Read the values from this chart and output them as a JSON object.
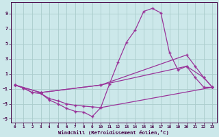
{
  "background_color": "#cce8ea",
  "grid_color": "#aacccc",
  "line_color": "#993399",
  "xlim": [
    -0.5,
    23.5
  ],
  "ylim": [
    -5.5,
    10.5
  ],
  "yticks": [
    -5,
    -3,
    -1,
    1,
    3,
    5,
    7,
    9
  ],
  "xticks": [
    0,
    1,
    2,
    3,
    4,
    5,
    6,
    7,
    8,
    9,
    10,
    11,
    12,
    13,
    14,
    15,
    16,
    17,
    18,
    19,
    20,
    21,
    22,
    23
  ],
  "xlabel": "Windchill (Refroidissement éolien,°C)",
  "lines": [
    {
      "x": [
        0,
        1,
        2,
        3,
        4,
        5,
        6,
        7,
        8,
        9,
        10,
        11,
        12,
        13,
        14,
        15,
        16,
        17,
        18,
        19,
        20,
        21,
        22,
        23
      ],
      "y": [
        -0.5,
        -0.9,
        -1.5,
        -1.6,
        -2.5,
        -3.0,
        -3.6,
        -4.0,
        -4.1,
        -4.7,
        -3.5,
        -0.4,
        2.5,
        5.2,
        6.8,
        9.3,
        9.7,
        9.1,
        3.8,
        1.5,
        2.0,
        0.5,
        -0.8,
        -0.8
      ]
    },
    {
      "x": [
        0,
        1,
        2,
        3,
        4,
        5,
        6,
        7,
        8,
        9,
        10,
        23
      ],
      "y": [
        -0.5,
        -0.9,
        -1.5,
        -1.6,
        -2.3,
        -2.6,
        -3.0,
        -3.2,
        -3.3,
        -3.4,
        -3.5,
        -0.8
      ]
    },
    {
      "x": [
        0,
        3,
        10,
        20,
        21,
        22,
        23
      ],
      "y": [
        -0.5,
        -1.5,
        -0.5,
        3.5,
        2.0,
        0.5,
        -0.8
      ]
    },
    {
      "x": [
        0,
        3,
        10,
        20,
        22,
        23
      ],
      "y": [
        -0.5,
        -1.5,
        -0.5,
        2.0,
        0.5,
        -0.8
      ]
    }
  ]
}
